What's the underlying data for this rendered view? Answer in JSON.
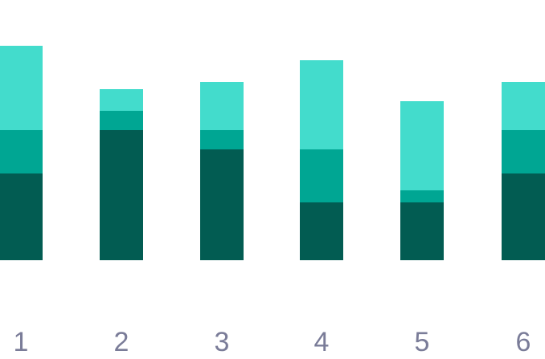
{
  "chart_data": {
    "type": "bar",
    "stacked": true,
    "categories": [
      "1",
      "2",
      "3",
      "4",
      "5",
      "6"
    ],
    "series": [
      {
        "values": [
          9.0,
          13.5,
          11.5,
          6.0,
          6.0,
          9.0
        ],
        "color": "#025c52"
      },
      {
        "values": [
          4.5,
          2.0,
          2.0,
          5.5,
          1.25,
          4.5
        ],
        "color": "#00a693"
      },
      {
        "values": [
          8.75,
          2.25,
          5.0,
          9.25,
          9.25,
          5.0
        ],
        "color": "#43dccc"
      }
    ],
    "ylim": [
      0,
      22.25
    ],
    "grid": false,
    "legend": "none"
  }
}
